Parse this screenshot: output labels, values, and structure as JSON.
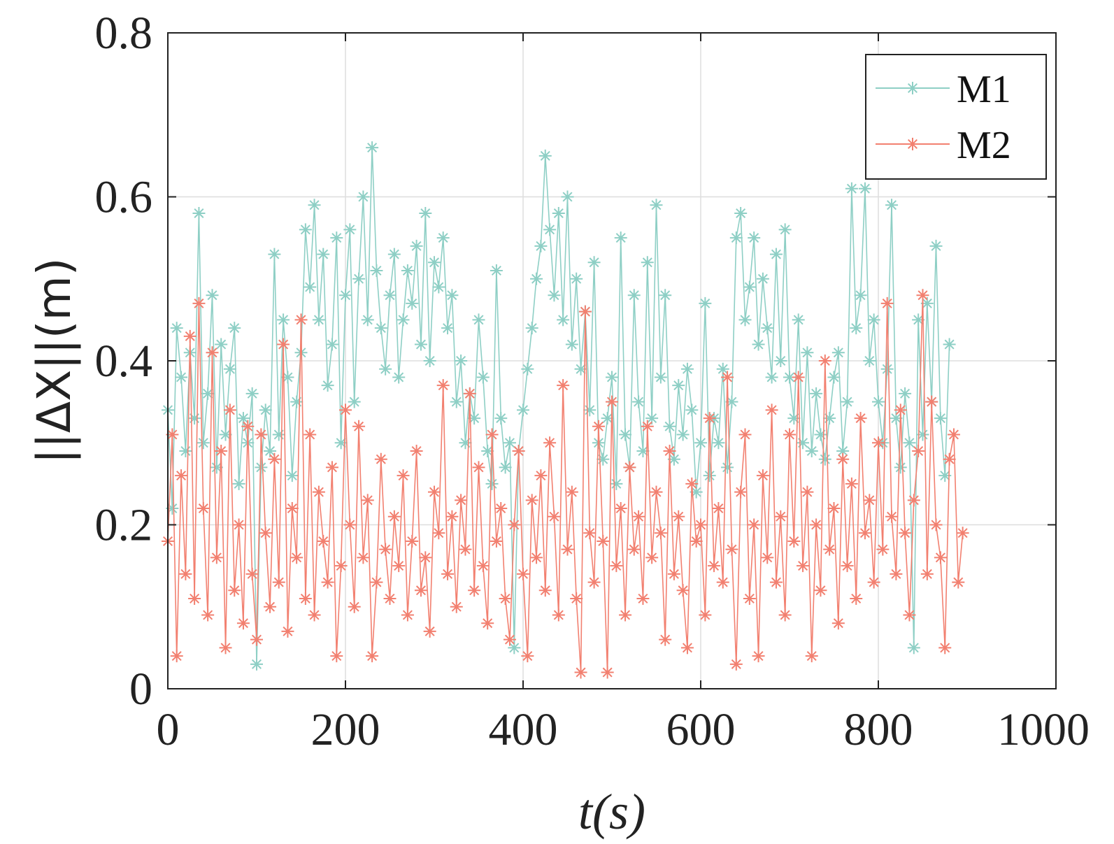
{
  "chart_data": {
    "type": "line",
    "markers": "asterisk",
    "xlabel": "t(s)",
    "ylabel": "||ΔX||(m)",
    "xlim": [
      0,
      1000
    ],
    "ylim": [
      0,
      0.8
    ],
    "xticks": [
      "0",
      "200",
      "400",
      "600",
      "800",
      "1000"
    ],
    "yticks": [
      "0",
      "0.2",
      "0.4",
      "0.6",
      "0.8"
    ],
    "grid": true,
    "legend_position": "top-right",
    "x_start": 0,
    "x_step": 5,
    "series": [
      {
        "name": "M1",
        "color": "#8ecfc5",
        "values": [
          0.34,
          0.22,
          0.44,
          0.38,
          0.29,
          0.41,
          0.33,
          0.58,
          0.3,
          0.36,
          0.48,
          0.27,
          0.42,
          0.31,
          0.39,
          0.44,
          0.25,
          0.33,
          0.3,
          0.36,
          0.03,
          0.27,
          0.34,
          0.29,
          0.53,
          0.31,
          0.45,
          0.38,
          0.26,
          0.35,
          0.41,
          0.56,
          0.49,
          0.59,
          0.45,
          0.53,
          0.37,
          0.42,
          0.55,
          0.3,
          0.48,
          0.56,
          0.35,
          0.5,
          0.6,
          0.45,
          0.66,
          0.51,
          0.44,
          0.39,
          0.48,
          0.53,
          0.38,
          0.45,
          0.51,
          0.47,
          0.54,
          0.42,
          0.58,
          0.4,
          0.52,
          0.49,
          0.55,
          0.44,
          0.48,
          0.35,
          0.4,
          0.3,
          0.36,
          0.33,
          0.45,
          0.38,
          0.29,
          0.25,
          0.51,
          0.33,
          0.27,
          0.3,
          0.05,
          0.29,
          0.34,
          0.39,
          0.44,
          0.5,
          0.54,
          0.65,
          0.56,
          0.48,
          0.58,
          0.45,
          0.6,
          0.42,
          0.5,
          0.39,
          0.46,
          0.34,
          0.52,
          0.3,
          0.28,
          0.33,
          0.38,
          0.25,
          0.55,
          0.31,
          0.27,
          0.48,
          0.35,
          0.29,
          0.52,
          0.33,
          0.59,
          0.38,
          0.48,
          0.32,
          0.28,
          0.37,
          0.31,
          0.39,
          0.34,
          0.24,
          0.3,
          0.47,
          0.26,
          0.33,
          0.3,
          0.39,
          0.27,
          0.35,
          0.55,
          0.58,
          0.45,
          0.49,
          0.55,
          0.42,
          0.5,
          0.44,
          0.38,
          0.53,
          0.4,
          0.56,
          0.38,
          0.33,
          0.45,
          0.3,
          0.41,
          0.29,
          0.36,
          0.31,
          0.28,
          0.33,
          0.38,
          0.41,
          0.29,
          0.35,
          0.61,
          0.44,
          0.48,
          0.61,
          0.4,
          0.45,
          0.35,
          0.3,
          0.39,
          0.59,
          0.33,
          0.27,
          0.36,
          0.3,
          0.05,
          0.45,
          0.31,
          0.47,
          0.35,
          0.54,
          0.33,
          0.26,
          0.42
        ]
      },
      {
        "name": "M2",
        "color": "#f28070",
        "values": [
          0.18,
          0.31,
          0.04,
          0.26,
          0.14,
          0.43,
          0.11,
          0.47,
          0.22,
          0.09,
          0.41,
          0.16,
          0.29,
          0.05,
          0.34,
          0.12,
          0.2,
          0.08,
          0.32,
          0.14,
          0.06,
          0.31,
          0.19,
          0.1,
          0.28,
          0.13,
          0.42,
          0.07,
          0.22,
          0.16,
          0.45,
          0.11,
          0.31,
          0.09,
          0.24,
          0.18,
          0.13,
          0.27,
          0.04,
          0.15,
          0.34,
          0.2,
          0.1,
          0.32,
          0.16,
          0.23,
          0.04,
          0.13,
          0.28,
          0.17,
          0.11,
          0.21,
          0.15,
          0.26,
          0.09,
          0.18,
          0.29,
          0.12,
          0.16,
          0.07,
          0.24,
          0.19,
          0.37,
          0.14,
          0.21,
          0.1,
          0.23,
          0.17,
          0.36,
          0.12,
          0.27,
          0.15,
          0.08,
          0.31,
          0.18,
          0.22,
          0.11,
          0.06,
          0.2,
          0.29,
          0.14,
          0.04,
          0.23,
          0.16,
          0.26,
          0.12,
          0.3,
          0.21,
          0.09,
          0.37,
          0.17,
          0.24,
          0.11,
          0.02,
          0.46,
          0.19,
          0.13,
          0.32,
          0.18,
          0.02,
          0.35,
          0.15,
          0.22,
          0.09,
          0.27,
          0.17,
          0.21,
          0.11,
          0.32,
          0.16,
          0.24,
          0.19,
          0.06,
          0.29,
          0.14,
          0.21,
          0.12,
          0.05,
          0.25,
          0.18,
          0.2,
          0.09,
          0.33,
          0.15,
          0.22,
          0.13,
          0.38,
          0.17,
          0.03,
          0.24,
          0.31,
          0.11,
          0.2,
          0.04,
          0.26,
          0.16,
          0.34,
          0.13,
          0.21,
          0.09,
          0.31,
          0.18,
          0.38,
          0.15,
          0.24,
          0.04,
          0.2,
          0.12,
          0.4,
          0.17,
          0.22,
          0.08,
          0.28,
          0.15,
          0.25,
          0.11,
          0.33,
          0.19,
          0.23,
          0.13,
          0.3,
          0.17,
          0.47,
          0.21,
          0.14,
          0.34,
          0.19,
          0.09,
          0.23,
          0.29,
          0.48,
          0.14,
          0.35,
          0.2,
          0.16,
          0.05,
          0.28,
          0.31,
          0.13,
          0.19
        ]
      }
    ]
  }
}
